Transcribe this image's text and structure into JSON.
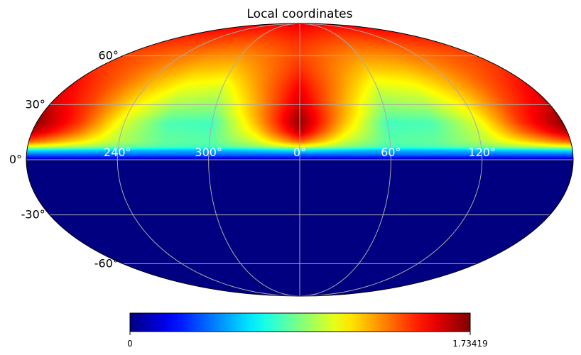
{
  "chart_data": {
    "type": "heatmap",
    "projection": "mollweide",
    "title": "Local coordinates",
    "xlabel": "",
    "ylabel": "",
    "grid": true,
    "lat_ticks": [
      {
        "value": 60,
        "label": "60°"
      },
      {
        "value": 30,
        "label": "30°"
      },
      {
        "value": 0,
        "label": "0°"
      },
      {
        "value": -30,
        "label": "-30°"
      },
      {
        "value": -60,
        "label": "-60°"
      }
    ],
    "lon_ticks": [
      {
        "value": 120,
        "label": "120°"
      },
      {
        "value": 60,
        "label": "60°"
      },
      {
        "value": 0,
        "label": "0°"
      },
      {
        "value": 300,
        "label": "300°"
      },
      {
        "value": 240,
        "label": "240°"
      }
    ],
    "colormap": "jet",
    "colorbar": {
      "min": 0,
      "max": 1.73419,
      "min_label": "0",
      "max_label": "1.73419"
    },
    "field": {
      "description_type": "sampled",
      "below_horizon_value": 0,
      "lat": [
        90,
        80,
        70,
        60,
        50,
        40,
        30,
        25,
        20,
        15,
        10,
        7,
        5,
        3,
        1,
        0
      ],
      "lon": [
        180,
        150,
        120,
        90,
        60,
        30,
        0,
        -30,
        -60,
        -90,
        -120,
        -150,
        -180
      ],
      "values": [
        [
          1.55,
          1.55,
          1.55,
          1.55,
          1.55,
          1.55,
          1.55,
          1.55,
          1.55,
          1.55,
          1.55,
          1.55,
          1.55
        ],
        [
          1.5,
          1.49,
          1.48,
          1.47,
          1.46,
          1.48,
          1.5,
          1.48,
          1.46,
          1.47,
          1.48,
          1.49,
          1.5
        ],
        [
          1.44,
          1.42,
          1.4,
          1.38,
          1.37,
          1.4,
          1.44,
          1.4,
          1.37,
          1.38,
          1.4,
          1.42,
          1.44
        ],
        [
          1.4,
          1.36,
          1.32,
          1.28,
          1.27,
          1.33,
          1.4,
          1.33,
          1.27,
          1.28,
          1.32,
          1.36,
          1.4
        ],
        [
          1.45,
          1.36,
          1.26,
          1.18,
          1.16,
          1.3,
          1.45,
          1.3,
          1.16,
          1.18,
          1.26,
          1.36,
          1.45
        ],
        [
          1.53,
          1.38,
          1.2,
          1.06,
          1.02,
          1.28,
          1.53,
          1.28,
          1.02,
          1.06,
          1.2,
          1.38,
          1.53
        ],
        [
          1.6,
          1.4,
          1.12,
          0.94,
          0.9,
          1.24,
          1.6,
          1.24,
          0.9,
          0.94,
          1.12,
          1.4,
          1.6
        ],
        [
          1.66,
          1.42,
          1.08,
          0.86,
          0.84,
          1.24,
          1.66,
          1.24,
          0.84,
          0.86,
          1.08,
          1.42,
          1.66
        ],
        [
          1.7,
          1.42,
          1.02,
          0.78,
          0.76,
          1.2,
          1.7,
          1.2,
          0.76,
          0.78,
          1.02,
          1.42,
          1.7
        ],
        [
          1.63,
          1.34,
          0.98,
          0.8,
          0.78,
          1.12,
          1.63,
          1.12,
          0.78,
          0.8,
          0.98,
          1.34,
          1.63
        ],
        [
          1.38,
          1.16,
          0.95,
          0.82,
          0.8,
          1.0,
          1.38,
          1.0,
          0.8,
          0.82,
          0.95,
          1.16,
          1.38
        ],
        [
          1.05,
          0.95,
          0.85,
          0.78,
          0.76,
          0.88,
          1.05,
          0.88,
          0.76,
          0.78,
          0.85,
          0.95,
          1.05
        ],
        [
          0.62,
          0.58,
          0.55,
          0.53,
          0.52,
          0.56,
          0.62,
          0.56,
          0.52,
          0.53,
          0.55,
          0.58,
          0.62
        ],
        [
          0.42,
          0.42,
          0.42,
          0.42,
          0.42,
          0.42,
          0.42,
          0.42,
          0.42,
          0.42,
          0.42,
          0.42,
          0.42
        ],
        [
          0.22,
          0.22,
          0.22,
          0.22,
          0.22,
          0.22,
          0.22,
          0.22,
          0.22,
          0.22,
          0.22,
          0.22,
          0.22
        ],
        [
          0.0,
          0.0,
          0.0,
          0.0,
          0.0,
          0.0,
          0.0,
          0.0,
          0.0,
          0.0,
          0.0,
          0.0,
          0.0
        ]
      ]
    }
  },
  "style": {
    "grid_color": "#aaaaaa",
    "outline_color": "#000000",
    "lon_label_color": "#ffffff",
    "text_color": "#000000"
  }
}
